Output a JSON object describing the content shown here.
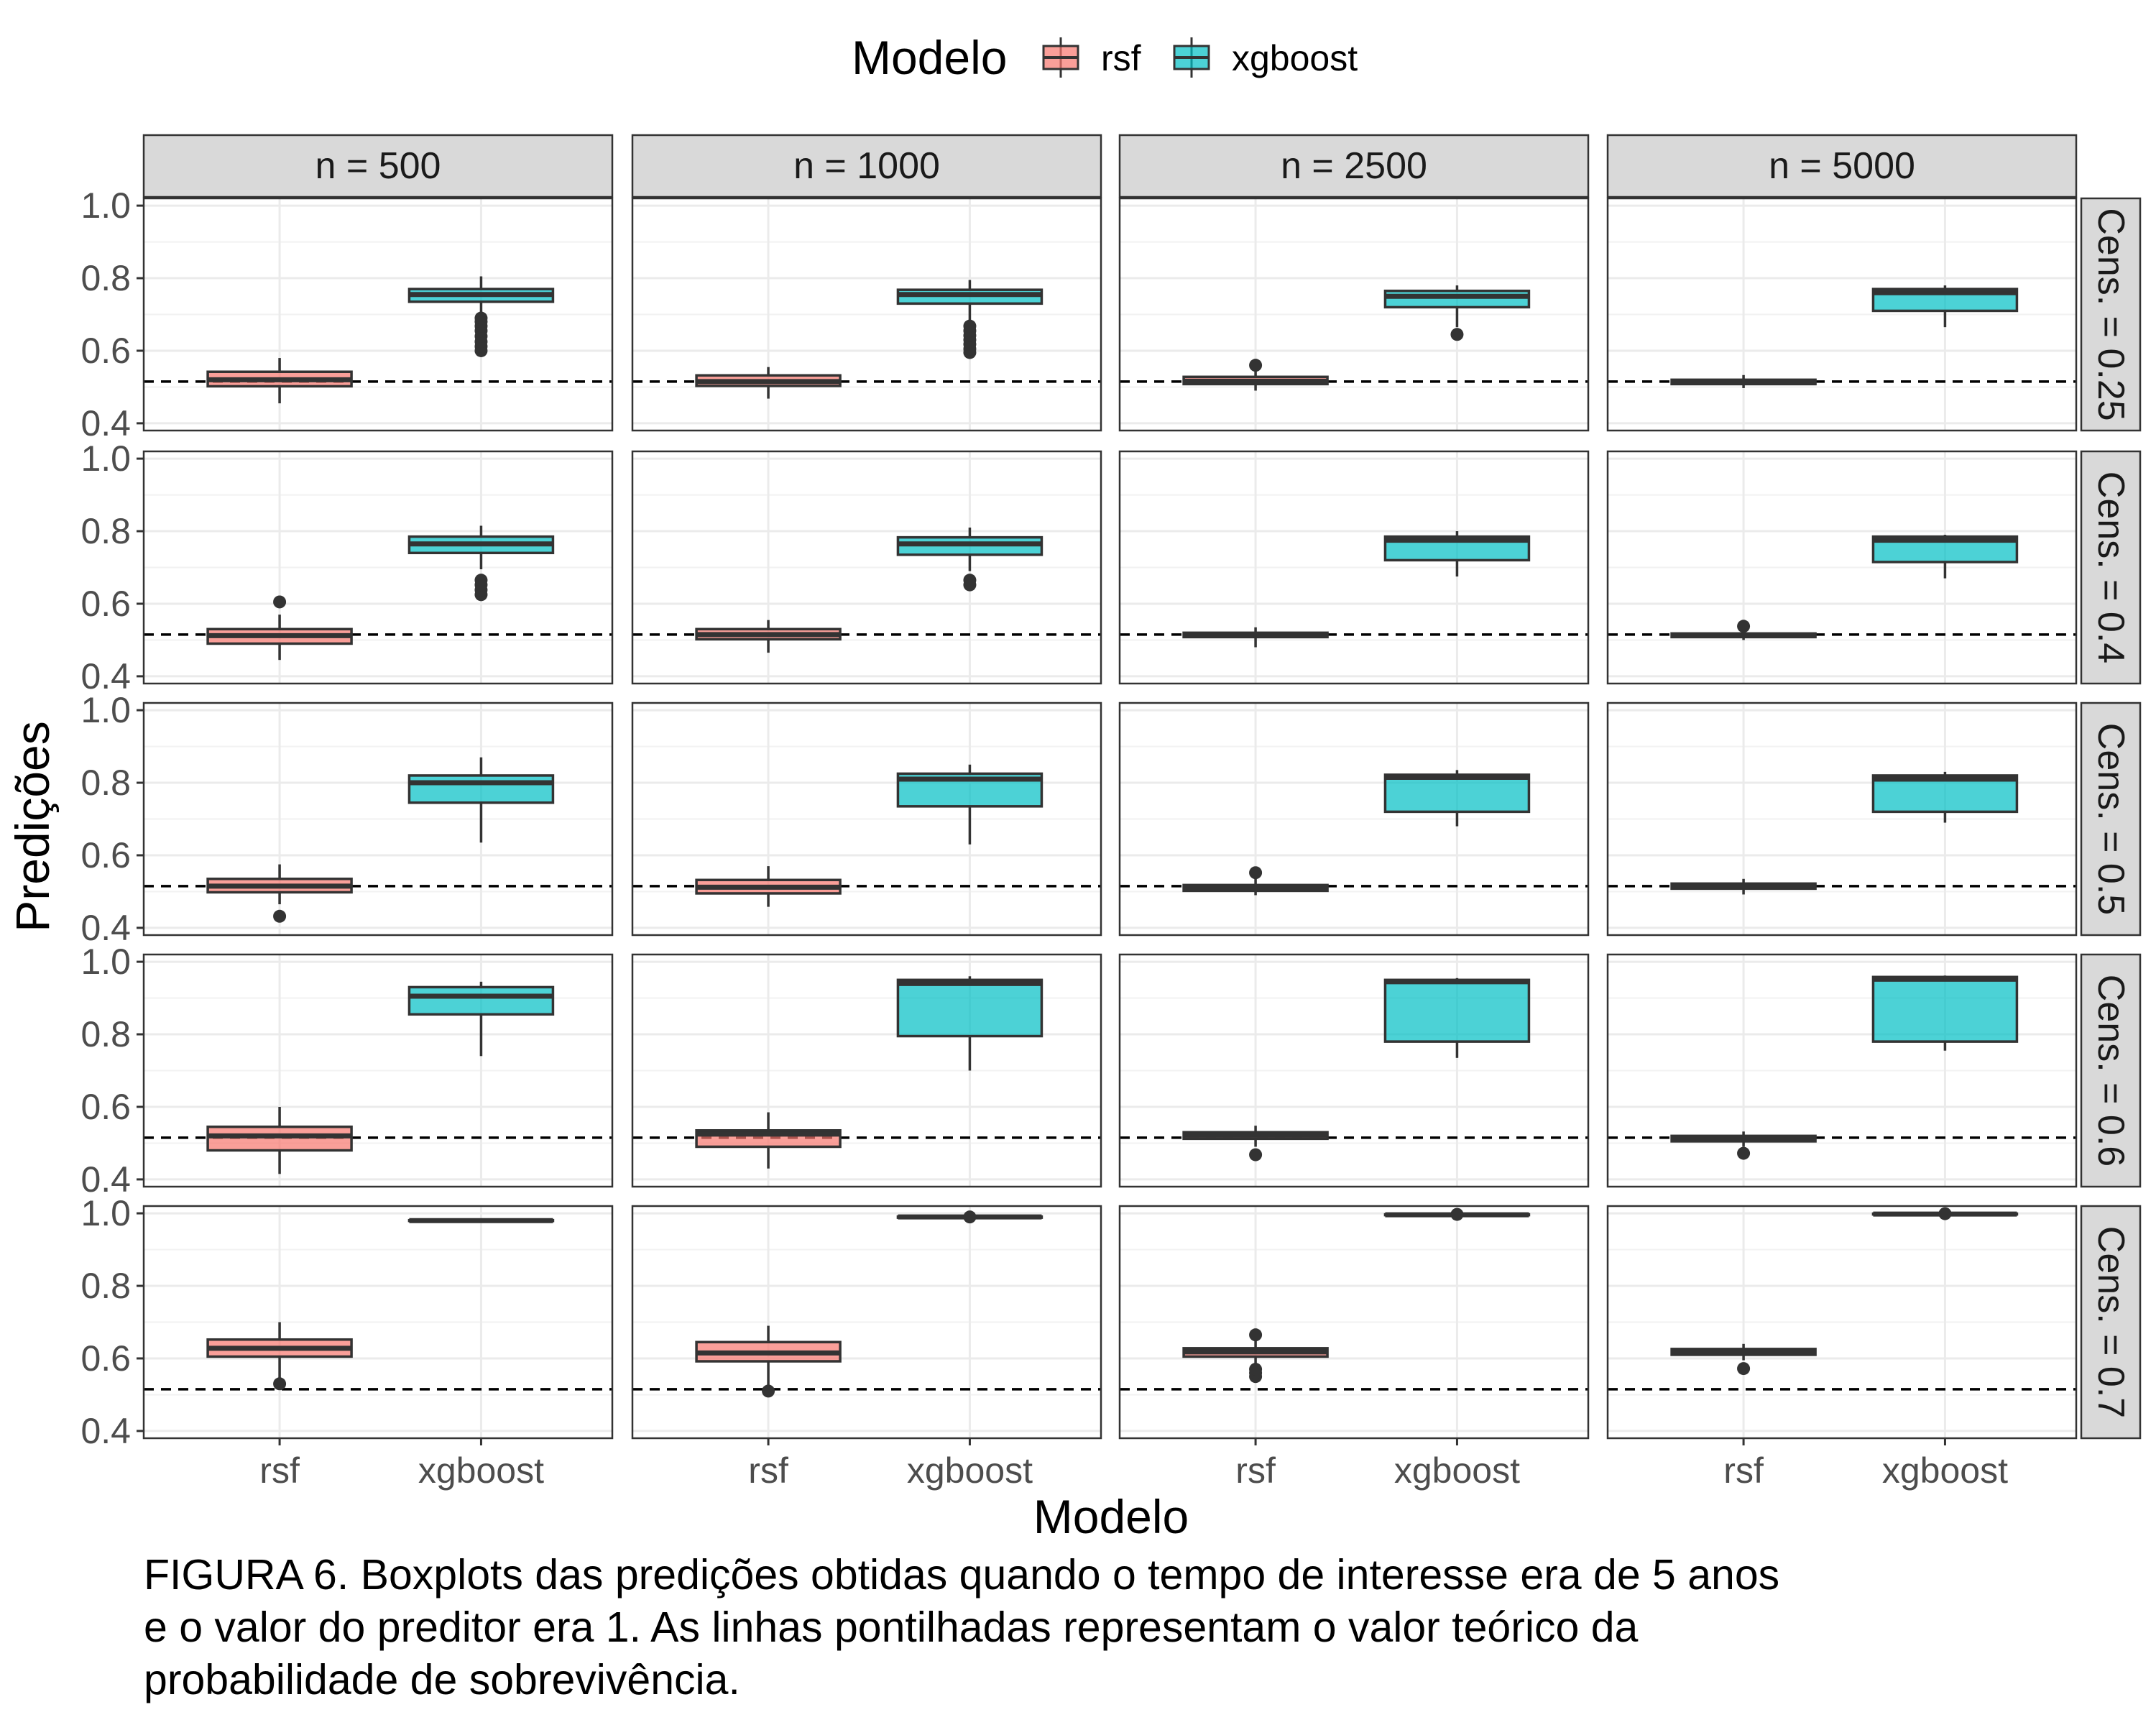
{
  "figure": {
    "caption_lines": [
      "FIGURA 6. Boxplots das predições obtidas quando o tempo de interesse era de 5 anos",
      "e o valor do preditor era 1. As linhas pontilhadas representam o valor teórico da",
      "probabilidade de sobrevivência."
    ]
  },
  "chart_data": {
    "type": "boxplot",
    "xlabel": "Modelo",
    "ylabel": "Predições",
    "ylim": [
      0.38,
      1.02
    ],
    "yticks": [
      0.4,
      0.6,
      0.8,
      1.0
    ],
    "ytick_labels": [
      "0.4",
      "0.6",
      "0.8",
      "1.0"
    ],
    "categories": [
      "rsf",
      "xgboost"
    ],
    "legend": {
      "title": "Modelo",
      "position": "top",
      "items": [
        {
          "name": "rsf",
          "color": "#F8766D"
        },
        {
          "name": "xgboost",
          "color": "#00BFC4"
        }
      ]
    },
    "col_facets": [
      "n = 500",
      "n = 1000",
      "n = 2500",
      "n = 5000"
    ],
    "row_facets": [
      "Cens. = 0.25",
      "Cens. = 0.4",
      "Cens. = 0.5",
      "Cens. = 0.6",
      "Cens. = 0.7"
    ],
    "reference_line": {
      "style": "dashed",
      "value": 0.515
    },
    "panels": [
      [
        {
          "rsf": {
            "lw": 0.455,
            "q1": 0.502,
            "med": 0.52,
            "q3": 0.542,
            "uw": 0.58,
            "outliers": []
          },
          "xgboost": {
            "lw": 0.7,
            "q1": 0.735,
            "med": 0.755,
            "q3": 0.77,
            "uw": 0.805,
            "outliers": [
              0.6,
              0.612,
              0.625,
              0.64,
              0.655,
              0.668,
              0.68,
              0.69
            ]
          }
        },
        {
          "rsf": {
            "lw": 0.468,
            "q1": 0.503,
            "med": 0.515,
            "q3": 0.532,
            "uw": 0.555,
            "outliers": []
          },
          "xgboost": {
            "lw": 0.68,
            "q1": 0.73,
            "med": 0.755,
            "q3": 0.768,
            "uw": 0.795,
            "outliers": [
              0.595,
              0.605,
              0.618,
              0.63,
              0.642,
              0.655,
              0.668
            ]
          }
        },
        {
          "rsf": {
            "lw": 0.49,
            "q1": 0.508,
            "med": 0.516,
            "q3": 0.528,
            "uw": 0.545,
            "outliers": [
              0.56
            ]
          },
          "xgboost": {
            "lw": 0.665,
            "q1": 0.72,
            "med": 0.75,
            "q3": 0.765,
            "uw": 0.78,
            "outliers": [
              0.645
            ]
          }
        },
        {
          "rsf": {
            "lw": 0.497,
            "q1": 0.508,
            "med": 0.514,
            "q3": 0.52,
            "uw": 0.533,
            "outliers": []
          },
          "xgboost": {
            "lw": 0.665,
            "q1": 0.71,
            "med": 0.76,
            "q3": 0.77,
            "uw": 0.78,
            "outliers": []
          }
        }
      ],
      [
        {
          "rsf": {
            "lw": 0.445,
            "q1": 0.49,
            "med": 0.512,
            "q3": 0.53,
            "uw": 0.57,
            "outliers": [
              0.605
            ]
          },
          "xgboost": {
            "lw": 0.695,
            "q1": 0.74,
            "med": 0.765,
            "q3": 0.785,
            "uw": 0.815,
            "outliers": [
              0.625,
              0.638,
              0.652,
              0.665
            ]
          }
        },
        {
          "rsf": {
            "lw": 0.465,
            "q1": 0.502,
            "med": 0.515,
            "q3": 0.53,
            "uw": 0.555,
            "outliers": []
          },
          "xgboost": {
            "lw": 0.69,
            "q1": 0.735,
            "med": 0.765,
            "q3": 0.783,
            "uw": 0.81,
            "outliers": [
              0.652,
              0.665
            ]
          }
        },
        {
          "rsf": {
            "lw": 0.48,
            "q1": 0.508,
            "med": 0.515,
            "q3": 0.52,
            "uw": 0.535,
            "outliers": []
          },
          "xgboost": {
            "lw": 0.675,
            "q1": 0.72,
            "med": 0.775,
            "q3": 0.785,
            "uw": 0.8,
            "outliers": []
          }
        },
        {
          "rsf": {
            "lw": 0.5,
            "q1": 0.508,
            "med": 0.513,
            "q3": 0.518,
            "uw": 0.53,
            "outliers": [
              0.538
            ]
          },
          "xgboost": {
            "lw": 0.67,
            "q1": 0.715,
            "med": 0.775,
            "q3": 0.785,
            "uw": 0.79,
            "outliers": []
          }
        }
      ],
      [
        {
          "rsf": {
            "lw": 0.465,
            "q1": 0.498,
            "med": 0.515,
            "q3": 0.535,
            "uw": 0.575,
            "outliers": [
              0.432
            ]
          },
          "xgboost": {
            "lw": 0.635,
            "q1": 0.745,
            "med": 0.8,
            "q3": 0.82,
            "uw": 0.87,
            "outliers": []
          }
        },
        {
          "rsf": {
            "lw": 0.458,
            "q1": 0.495,
            "med": 0.512,
            "q3": 0.532,
            "uw": 0.57,
            "outliers": []
          },
          "xgboost": {
            "lw": 0.63,
            "q1": 0.735,
            "med": 0.81,
            "q3": 0.825,
            "uw": 0.85,
            "outliers": []
          }
        },
        {
          "rsf": {
            "lw": 0.49,
            "q1": 0.502,
            "med": 0.508,
            "q3": 0.518,
            "uw": 0.535,
            "outliers": [
              0.552
            ]
          },
          "xgboost": {
            "lw": 0.68,
            "q1": 0.72,
            "med": 0.815,
            "q3": 0.822,
            "uw": 0.835,
            "outliers": []
          }
        },
        {
          "rsf": {
            "lw": 0.492,
            "q1": 0.508,
            "med": 0.515,
            "q3": 0.522,
            "uw": 0.535,
            "outliers": []
          },
          "xgboost": {
            "lw": 0.69,
            "q1": 0.72,
            "med": 0.81,
            "q3": 0.82,
            "uw": 0.83,
            "outliers": []
          }
        }
      ],
      [
        {
          "rsf": {
            "lw": 0.415,
            "q1": 0.48,
            "med": 0.52,
            "q3": 0.545,
            "uw": 0.6,
            "outliers": []
          },
          "xgboost": {
            "lw": 0.74,
            "q1": 0.855,
            "med": 0.905,
            "q3": 0.93,
            "uw": 0.945,
            "outliers": []
          }
        },
        {
          "rsf": {
            "lw": 0.43,
            "q1": 0.49,
            "med": 0.525,
            "q3": 0.535,
            "uw": 0.585,
            "outliers": []
          },
          "xgboost": {
            "lw": 0.7,
            "q1": 0.795,
            "med": 0.94,
            "q3": 0.95,
            "uw": 0.96,
            "outliers": []
          }
        },
        {
          "rsf": {
            "lw": 0.49,
            "q1": 0.512,
            "med": 0.522,
            "q3": 0.53,
            "uw": 0.548,
            "outliers": [
              0.468
            ]
          },
          "xgboost": {
            "lw": 0.735,
            "q1": 0.78,
            "med": 0.945,
            "q3": 0.95,
            "uw": 0.955,
            "outliers": []
          }
        },
        {
          "rsf": {
            "lw": 0.49,
            "q1": 0.505,
            "med": 0.512,
            "q3": 0.52,
            "uw": 0.532,
            "outliers": [
              0.472
            ]
          },
          "xgboost": {
            "lw": 0.755,
            "q1": 0.78,
            "med": 0.952,
            "q3": 0.958,
            "uw": 0.962,
            "outliers": []
          }
        }
      ],
      [
        {
          "rsf": {
            "lw": 0.545,
            "q1": 0.605,
            "med": 0.628,
            "q3": 0.652,
            "uw": 0.7,
            "outliers": [
              0.53
            ]
          },
          "xgboost": {
            "lw": 0.979,
            "q1": 0.979,
            "med": 0.98,
            "q3": 0.981,
            "uw": 0.982,
            "outliers": []
          }
        },
        {
          "rsf": {
            "lw": 0.525,
            "q1": 0.592,
            "med": 0.615,
            "q3": 0.645,
            "uw": 0.69,
            "outliers": [
              0.51
            ]
          },
          "xgboost": {
            "lw": 0.987,
            "q1": 0.988,
            "med": 0.99,
            "q3": 0.991,
            "uw": 0.993,
            "outliers": [
              0.99
            ]
          }
        },
        {
          "rsf": {
            "lw": 0.575,
            "q1": 0.605,
            "med": 0.618,
            "q3": 0.628,
            "uw": 0.648,
            "outliers": [
              0.55,
              0.56,
              0.57,
              0.665
            ]
          },
          "xgboost": {
            "lw": 0.994,
            "q1": 0.995,
            "med": 0.996,
            "q3": 0.997,
            "uw": 0.998,
            "outliers": [
              0.997
            ]
          }
        },
        {
          "rsf": {
            "lw": 0.595,
            "q1": 0.61,
            "med": 0.618,
            "q3": 0.626,
            "uw": 0.64,
            "outliers": [
              0.572
            ]
          },
          "xgboost": {
            "lw": 0.996,
            "q1": 0.997,
            "med": 0.998,
            "q3": 0.999,
            "uw": 1.0,
            "outliers": [
              0.999
            ]
          }
        }
      ]
    ]
  }
}
